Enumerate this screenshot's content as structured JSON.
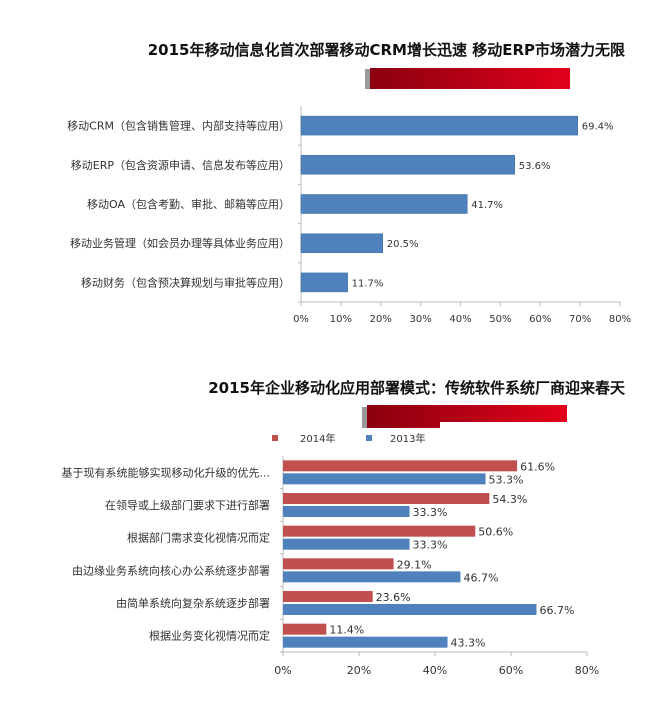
{
  "chart_data": [
    {
      "type": "bar",
      "orientation": "horizontal",
      "title": "2015年移动信息化首次部署移动CRM增长迅速 移动ERP市场潜力无限",
      "categories": [
        "移动CRM（包含销售管理、内部支持等应用）",
        "移动ERP（包含资源申请、信息发布等应用）",
        "移动OA（包含考勤、审批、邮箱等应用）",
        "移动业务管理（如会员办理等具体业务应用）",
        "移动财务（包含预决算规划与审批等应用）"
      ],
      "values": [
        69.4,
        53.6,
        41.7,
        20.5,
        11.7
      ],
      "value_labels": [
        "69.4%",
        "53.6%",
        "41.7%",
        "20.5%",
        "11.7%"
      ],
      "xlim": [
        0,
        80
      ],
      "ticks": [
        "0%",
        "10%",
        "20%",
        "30%",
        "40%",
        "50%",
        "60%",
        "70%",
        "80%"
      ],
      "color": "#4f81bd",
      "grid": false
    },
    {
      "type": "bar",
      "orientation": "horizontal",
      "title": "2015年企业移动化应用部署模式：传统软件系统厂商迎来春天",
      "categories": [
        "基于现有系统能够实现移动化升级的优先...",
        "在领导或上级部门要求下进行部署",
        "根据部门需求变化视情况而定",
        "由边缘业务系统向核心办公系统逐步部署",
        "由简单系统向复杂系统逐步部署",
        "根据业务变化视情况而定"
      ],
      "series": [
        {
          "name": "2014年",
          "color": "#c0504d",
          "values": [
            61.6,
            54.3,
            50.6,
            29.1,
            23.6,
            11.4
          ],
          "value_labels": [
            "61.6%",
            "54.3%",
            "50.6%",
            "29.1%",
            "23.6%",
            "11.4%"
          ]
        },
        {
          "name": "2013年",
          "color": "#4f81bd",
          "values": [
            53.3,
            33.3,
            33.3,
            46.7,
            66.7,
            43.3
          ],
          "value_labels": [
            "53.3%",
            "33.3%",
            "33.3%",
            "46.7%",
            "66.7%",
            "43.3%"
          ]
        }
      ],
      "xlim": [
        0,
        80
      ],
      "ticks": [
        "0%",
        "20%",
        "40%",
        "60%",
        "80%"
      ],
      "legend": "top",
      "grid": false
    }
  ]
}
